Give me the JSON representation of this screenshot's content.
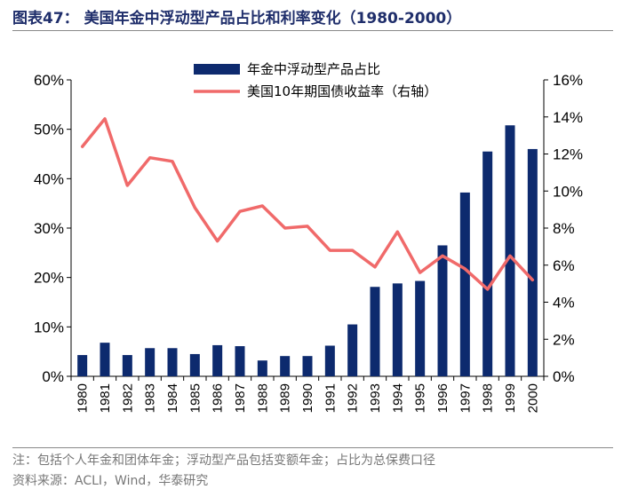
{
  "title": "图表47：  美国年金中浮动型产品占比和利率变化（1980-2000）",
  "notes": {
    "line1": "注：包括个人年金和团体年金；浮动型产品包括变额年金；占比为总保费口径",
    "line2": "资料来源：ACLI，Wind，华泰研究"
  },
  "colors": {
    "bar": "#0d2a6e",
    "line": "#f06a6a"
  },
  "chart_data": {
    "type": "bar",
    "categories": [
      "1980",
      "1981",
      "1982",
      "1983",
      "1984",
      "1985",
      "1986",
      "1987",
      "1988",
      "1989",
      "1990",
      "1991",
      "1992",
      "1993",
      "1994",
      "1995",
      "1996",
      "1997",
      "1998",
      "1999",
      "2000"
    ],
    "series": [
      {
        "name": "年金中浮动型产品占比",
        "type": "bar",
        "axis": "left",
        "values": [
          4.3,
          6.8,
          4.3,
          5.7,
          5.7,
          4.5,
          6.3,
          6.1,
          3.2,
          4.1,
          4.1,
          6.2,
          10.5,
          18.1,
          18.8,
          19.3,
          26.5,
          37.2,
          45.5,
          50.8,
          46.0
        ]
      },
      {
        "name": "美国10年期国债收益率（右轴）",
        "type": "line",
        "axis": "right",
        "values": [
          12.4,
          13.9,
          10.3,
          11.8,
          11.6,
          9.1,
          7.3,
          8.9,
          9.2,
          8.0,
          8.1,
          6.8,
          6.8,
          5.9,
          7.8,
          5.6,
          6.5,
          5.8,
          4.7,
          6.5,
          5.2
        ]
      }
    ],
    "ylim": [
      0,
      60
    ],
    "y2lim": [
      0,
      16
    ],
    "yticks": [
      "0%",
      "10%",
      "20%",
      "30%",
      "40%",
      "50%",
      "60%"
    ],
    "y2ticks": [
      "0%",
      "2%",
      "4%",
      "6%",
      "8%",
      "10%",
      "12%",
      "14%",
      "16%"
    ],
    "legend": {
      "position": "top-center",
      "entries": [
        "年金中浮动型产品占比",
        "美国10年期国债收益率（右轴）"
      ]
    }
  }
}
